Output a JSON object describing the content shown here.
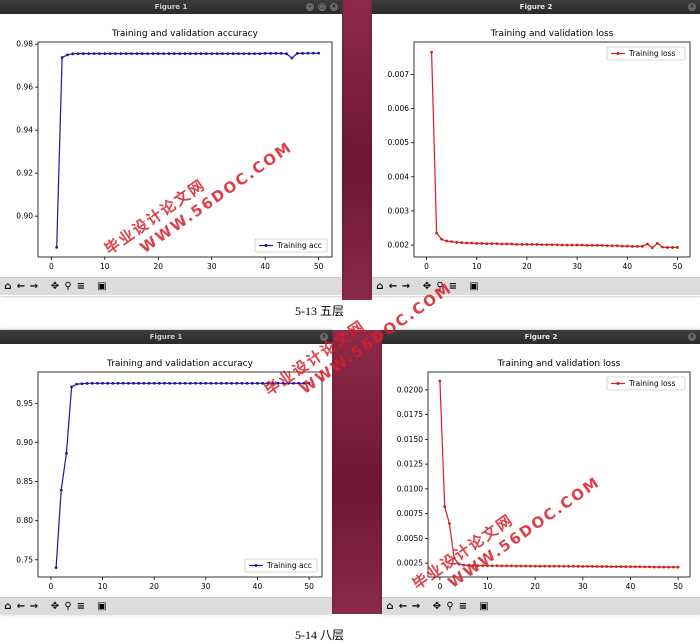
{
  "desktop_bg": "#7a1e3c",
  "figures": [
    {
      "window_title": "Figure 1",
      "active": false,
      "chart_data": {
        "type": "line",
        "title": "Training and validation accuracy",
        "legend": "Training acc",
        "legend_position": "lower-right",
        "color": "#1a1aa0",
        "x": [
          1,
          2,
          3,
          4,
          5,
          6,
          7,
          8,
          9,
          10,
          11,
          12,
          13,
          14,
          15,
          16,
          17,
          18,
          19,
          20,
          21,
          22,
          23,
          24,
          25,
          26,
          27,
          28,
          29,
          30,
          31,
          32,
          33,
          34,
          35,
          36,
          37,
          38,
          39,
          40,
          41,
          42,
          43,
          44,
          45,
          46,
          47,
          48,
          49,
          50
        ],
        "y": [
          0.8855,
          0.9738,
          0.975,
          0.9755,
          0.9756,
          0.9756,
          0.9756,
          0.9756,
          0.9756,
          0.9756,
          0.9756,
          0.9756,
          0.9756,
          0.9756,
          0.9756,
          0.9756,
          0.9756,
          0.9756,
          0.9756,
          0.9756,
          0.9756,
          0.9756,
          0.9756,
          0.9756,
          0.9756,
          0.9756,
          0.9756,
          0.9756,
          0.9756,
          0.9756,
          0.9756,
          0.9756,
          0.9756,
          0.9756,
          0.9756,
          0.9756,
          0.9756,
          0.9756,
          0.9756,
          0.9757,
          0.9757,
          0.9757,
          0.9757,
          0.9755,
          0.9735,
          0.9757,
          0.9757,
          0.9758,
          0.9758,
          0.9758
        ],
        "xlim": [
          -2.5,
          52.5
        ],
        "ylim": [
          0.881,
          0.981
        ],
        "xticks": [
          0,
          10,
          20,
          30,
          40,
          50
        ],
        "xtick_labels": [
          "0",
          "10",
          "20",
          "30",
          "40",
          "50"
        ],
        "yticks": [
          0.9,
          0.92,
          0.94,
          0.96,
          0.98
        ],
        "ytick_labels": [
          "0.90",
          "0.92",
          "0.94",
          "0.96",
          "0.98"
        ]
      }
    },
    {
      "window_title": "Figure 2",
      "active": true,
      "chart_data": {
        "type": "line",
        "title": "Training and validation loss",
        "legend": "Training loss",
        "legend_position": "upper-right",
        "color": "#d61e1e",
        "x": [
          1,
          2,
          3,
          4,
          5,
          6,
          7,
          8,
          9,
          10,
          11,
          12,
          13,
          14,
          15,
          16,
          17,
          18,
          19,
          20,
          21,
          22,
          23,
          24,
          25,
          26,
          27,
          28,
          29,
          30,
          31,
          32,
          33,
          34,
          35,
          36,
          37,
          38,
          39,
          40,
          41,
          42,
          43,
          44,
          45,
          46,
          47,
          48,
          49,
          50
        ],
        "y": [
          0.00765,
          0.00235,
          0.00217,
          0.00212,
          0.0021,
          0.00208,
          0.00207,
          0.00206,
          0.00206,
          0.00205,
          0.00205,
          0.00204,
          0.00204,
          0.00204,
          0.00203,
          0.00203,
          0.00203,
          0.00202,
          0.00202,
          0.00202,
          0.00202,
          0.00202,
          0.00201,
          0.00201,
          0.00201,
          0.00201,
          0.002,
          0.002,
          0.002,
          0.002,
          0.002,
          0.00199,
          0.00199,
          0.00199,
          0.00199,
          0.00198,
          0.00198,
          0.00198,
          0.00197,
          0.00197,
          0.00196,
          0.00196,
          0.00196,
          0.00203,
          0.00192,
          0.00205,
          0.00194,
          0.00193,
          0.00193,
          0.00193
        ],
        "xlim": [
          -2.5,
          52.5
        ],
        "ylim": [
          0.00165,
          0.00795
        ],
        "xticks": [
          0,
          10,
          20,
          30,
          40,
          50
        ],
        "xtick_labels": [
          "0",
          "10",
          "20",
          "30",
          "40",
          "50"
        ],
        "yticks": [
          0.002,
          0.003,
          0.004,
          0.005,
          0.006,
          0.007
        ],
        "ytick_labels": [
          "0.002",
          "0.003",
          "0.004",
          "0.005",
          "0.006",
          "0.007"
        ]
      }
    },
    {
      "window_title": "Figure 1",
      "active": false,
      "chart_data": {
        "type": "line",
        "title": "Training and validation accuracy",
        "legend": "Training acc",
        "legend_position": "lower-right",
        "color": "#1a1aa0",
        "x": [
          1,
          2,
          3,
          4,
          5,
          6,
          7,
          8,
          9,
          10,
          11,
          12,
          13,
          14,
          15,
          16,
          17,
          18,
          19,
          20,
          21,
          22,
          23,
          24,
          25,
          26,
          27,
          28,
          29,
          30,
          31,
          32,
          33,
          34,
          35,
          36,
          37,
          38,
          39,
          40,
          41,
          42,
          43,
          44,
          45,
          46,
          47,
          48,
          49,
          50
        ],
        "y": [
          0.74,
          0.839,
          0.886,
          0.971,
          0.9745,
          0.975,
          0.9755,
          0.9756,
          0.9756,
          0.9756,
          0.9756,
          0.9756,
          0.9756,
          0.9756,
          0.9756,
          0.9756,
          0.9756,
          0.9756,
          0.9756,
          0.9756,
          0.9756,
          0.9756,
          0.9756,
          0.9756,
          0.9756,
          0.9756,
          0.9756,
          0.9756,
          0.9756,
          0.9756,
          0.9756,
          0.9756,
          0.9756,
          0.9756,
          0.9756,
          0.9756,
          0.9756,
          0.9756,
          0.9756,
          0.9756,
          0.9756,
          0.9756,
          0.9756,
          0.9756,
          0.9756,
          0.9756,
          0.9756,
          0.9756,
          0.9756,
          0.9756
        ],
        "xlim": [
          -2.5,
          52.5
        ],
        "ylim": [
          0.728,
          0.99
        ],
        "xticks": [
          0,
          10,
          20,
          30,
          40,
          50
        ],
        "xtick_labels": [
          "0",
          "10",
          "20",
          "30",
          "40",
          "50"
        ],
        "yticks": [
          0.75,
          0.8,
          0.85,
          0.9,
          0.95
        ],
        "ytick_labels": [
          "0.75",
          "0.80",
          "0.85",
          "0.90",
          "0.95"
        ]
      }
    },
    {
      "window_title": "Figure 2",
      "active": true,
      "chart_data": {
        "type": "line",
        "title": "Training and validation loss",
        "legend": "Training loss",
        "legend_position": "upper-right",
        "color": "#d61e1e",
        "x": [
          0,
          1,
          2,
          3,
          4,
          5,
          6,
          7,
          8,
          9,
          10,
          11,
          12,
          13,
          14,
          15,
          16,
          17,
          18,
          19,
          20,
          21,
          22,
          23,
          24,
          25,
          26,
          27,
          28,
          29,
          30,
          31,
          32,
          33,
          34,
          35,
          36,
          37,
          38,
          39,
          40,
          41,
          42,
          43,
          44,
          45,
          46,
          47,
          48,
          49,
          50
        ],
        "y": [
          0.0209,
          0.0082,
          0.0065,
          0.003,
          0.0024,
          0.0023,
          0.00228,
          0.00226,
          0.00225,
          0.00224,
          0.00224,
          0.00223,
          0.00223,
          0.00222,
          0.00222,
          0.00222,
          0.00221,
          0.00221,
          0.00221,
          0.0022,
          0.0022,
          0.0022,
          0.0022,
          0.00219,
          0.00219,
          0.00219,
          0.00218,
          0.00218,
          0.00218,
          0.00218,
          0.00217,
          0.00217,
          0.00217,
          0.00216,
          0.00216,
          0.00216,
          0.00215,
          0.00215,
          0.00215,
          0.00214,
          0.00214,
          0.00213,
          0.00213,
          0.00212,
          0.00212,
          0.00211,
          0.00211,
          0.0021,
          0.0021,
          0.0021,
          0.0021
        ],
        "xlim": [
          -2.5,
          52.5
        ],
        "ylim": [
          0.0011,
          0.0218
        ],
        "xticks": [
          0,
          10,
          20,
          30,
          40,
          50
        ],
        "xtick_labels": [
          "0",
          "10",
          "20",
          "30",
          "40",
          "50"
        ],
        "yticks": [
          0.0025,
          0.005,
          0.0075,
          0.01,
          0.0125,
          0.015,
          0.0175,
          0.02
        ],
        "ytick_labels": [
          "0.0025",
          "0.0050",
          "0.0075",
          "0.0100",
          "0.0125",
          "0.0150",
          "0.0175",
          "0.0200"
        ]
      }
    }
  ],
  "toolbar_icons": [
    "home-icon",
    "back-arrow-icon",
    "forward-arrow-icon",
    "pan-icon",
    "zoom-icon",
    "configure-subplots-icon",
    "save-icon"
  ],
  "captions": [
    "5-13 五层",
    "5-14 八层"
  ],
  "watermark": {
    "line1": "毕业设计论文网",
    "line2": "WWW.56DOC.COM"
  }
}
